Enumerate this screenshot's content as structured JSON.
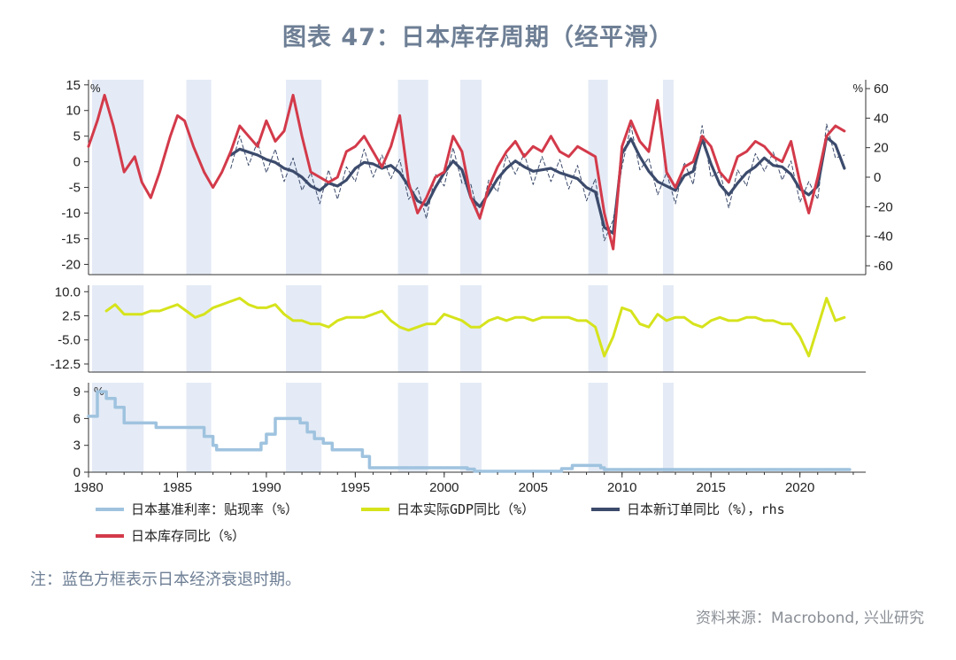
{
  "title": "图表 47：日本库存周期（经平滑）",
  "note": "注：蓝色方框表示日本经济衰退时期。",
  "source": "资料来源：Macrobond, 兴业研究",
  "legend": [
    {
      "label": "日本基准利率：贴现率（%）",
      "color": "#9fc3df"
    },
    {
      "label": "日本实际GDP同比（%）",
      "color": "#d6e31c"
    },
    {
      "label": "日本新订单同比（%），rhs",
      "color": "#3c4b6c"
    },
    {
      "label": "日本库存同比（%）",
      "color": "#d33a4a"
    }
  ],
  "colors": {
    "inventory": "#d33a4a",
    "orders": "#3c4b6c",
    "gdp": "#d6e31c",
    "rate": "#9fc3df",
    "recession": "#e4ebf6",
    "axis": "#333333"
  },
  "chart_data": [
    {
      "type": "line",
      "panel": "top",
      "x_ticks": [
        "1980",
        "1985",
        "1990",
        "1995",
        "2000",
        "2005",
        "2010",
        "2015",
        "2020"
      ],
      "left_axis": {
        "unit": "%",
        "ylim": [
          -22,
          16
        ],
        "ticks": [
          15,
          10,
          5,
          0,
          -5,
          -10,
          -15,
          -20
        ]
      },
      "right_axis": {
        "unit": "%",
        "ylim": [
          -66,
          66
        ],
        "ticks": [
          60,
          40,
          20,
          0,
          -20,
          -40,
          -60
        ]
      },
      "recessions": [
        [
          1980.2,
          1983.1
        ],
        [
          1985.5,
          1986.9
        ],
        [
          1991.1,
          1993.1
        ],
        [
          1997.4,
          1999.1
        ],
        [
          2000.9,
          2002.1
        ],
        [
          2008.1,
          2009.2
        ],
        [
          2012.3,
          2012.9
        ]
      ],
      "series": [
        {
          "name": "日本库存同比（%）",
          "axis": "left",
          "x": [
            1980,
            1980.5,
            1980.9,
            1981.4,
            1982.0,
            1982.6,
            1983.0,
            1983.5,
            1984.0,
            1984.6,
            1985.0,
            1985.4,
            1985.9,
            1986.5,
            1987.0,
            1987.5,
            1988.0,
            1988.5,
            1989.0,
            1989.5,
            1990.0,
            1990.5,
            1991.0,
            1991.5,
            1992.0,
            1992.5,
            1993.0,
            1993.5,
            1994.0,
            1994.5,
            1995.0,
            1995.5,
            1996.0,
            1996.5,
            1997.0,
            1997.5,
            1998.0,
            1998.5,
            1999.0,
            1999.5,
            2000.0,
            2000.5,
            2001.0,
            2001.5,
            2002.0,
            2002.5,
            2003.0,
            2003.5,
            2004.0,
            2004.5,
            2005.0,
            2005.5,
            2006.0,
            2006.5,
            2007.0,
            2007.5,
            2008.0,
            2008.5,
            2009.0,
            2009.5,
            2010.0,
            2010.5,
            2011.0,
            2011.5,
            2012.0,
            2012.5,
            2013.0,
            2013.5,
            2014.0,
            2014.5,
            2015.0,
            2015.5,
            2016.0,
            2016.5,
            2017.0,
            2017.5,
            2018.0,
            2018.5,
            2019.0,
            2019.5,
            2020.0,
            2020.5,
            2021.0,
            2021.5,
            2022.0,
            2022.5
          ],
          "values": [
            3,
            8,
            13,
            7,
            -2,
            1,
            -4,
            -7,
            -2,
            5,
            9,
            8,
            3,
            -2,
            -5,
            -2,
            2,
            7,
            5,
            3,
            8,
            4,
            6,
            13,
            5,
            -2,
            -3,
            -4,
            -3,
            2,
            3,
            5,
            2,
            -1,
            3,
            9,
            -4,
            -10,
            -7,
            -3,
            -2,
            5,
            2,
            -7,
            -11,
            -5,
            -1,
            2,
            4,
            1,
            3,
            2,
            5,
            2,
            1,
            3,
            2,
            1,
            -10,
            -17,
            3,
            8,
            4,
            2,
            12,
            -2,
            -5,
            -1,
            0,
            5,
            3,
            -2,
            -4,
            1,
            2,
            4,
            3,
            1,
            0,
            4,
            -4,
            -10,
            -3,
            5,
            7,
            6
          ]
        },
        {
          "name": "日本新订单同比（%），rhs",
          "axis": "right",
          "x": [
            1988.0,
            1988.5,
            1989.0,
            1989.5,
            1990.0,
            1990.5,
            1991.0,
            1991.5,
            1992.0,
            1992.5,
            1993.0,
            1993.5,
            1994.0,
            1994.5,
            1995.0,
            1995.5,
            1996.0,
            1996.5,
            1997.0,
            1997.5,
            1998.0,
            1998.5,
            1999.0,
            1999.5,
            2000.0,
            2000.5,
            2001.0,
            2001.5,
            2002.0,
            2002.5,
            2003.0,
            2003.5,
            2004.0,
            2004.5,
            2005.0,
            2005.5,
            2006.0,
            2006.5,
            2007.0,
            2007.5,
            2008.0,
            2008.5,
            2009.0,
            2009.5,
            2010.0,
            2010.5,
            2011.0,
            2011.5,
            2012.0,
            2012.5,
            2013.0,
            2013.5,
            2014.0,
            2014.5,
            2015.0,
            2015.5,
            2016.0,
            2016.5,
            2017.0,
            2017.5,
            2018.0,
            2018.5,
            2019.0,
            2019.5,
            2020.0,
            2020.5,
            2021.0,
            2021.5,
            2022.0,
            2022.5
          ],
          "values": [
            15,
            19,
            17,
            15,
            12,
            10,
            6,
            4,
            0,
            -6,
            -9,
            -4,
            -6,
            -2,
            6,
            10,
            9,
            6,
            8,
            3,
            -6,
            -16,
            -19,
            -7,
            3,
            11,
            5,
            -14,
            -20,
            -11,
            -1,
            6,
            11,
            7,
            4,
            5,
            6,
            3,
            1,
            -1,
            -7,
            -10,
            -34,
            -38,
            16,
            26,
            14,
            4,
            -3,
            -6,
            -9,
            1,
            4,
            26,
            9,
            -5,
            -12,
            -4,
            3,
            7,
            13,
            8,
            7,
            2,
            -8,
            -12,
            -6,
            27,
            22,
            6
          ]
        }
      ]
    },
    {
      "type": "line",
      "panel": "middle",
      "ylim": [
        -15,
        12
      ],
      "ticks": [
        10.0,
        2.5,
        -5.0,
        -12.5
      ],
      "series": [
        {
          "name": "日本实际GDP同比（%）",
          "x": [
            1981.0,
            1981.5,
            1982.0,
            1982.5,
            1983.0,
            1983.5,
            1984.0,
            1984.5,
            1985.0,
            1985.5,
            1986.0,
            1986.5,
            1987.0,
            1987.5,
            1988.0,
            1988.5,
            1989.0,
            1989.5,
            1990.0,
            1990.5,
            1991.0,
            1991.5,
            1992.0,
            1992.5,
            1993.0,
            1993.5,
            1994.0,
            1994.5,
            1995.0,
            1995.5,
            1996.0,
            1996.5,
            1997.0,
            1997.5,
            1998.0,
            1998.5,
            1999.0,
            1999.5,
            2000.0,
            2000.5,
            2001.0,
            2001.5,
            2002.0,
            2002.5,
            2003.0,
            2003.5,
            2004.0,
            2004.5,
            2005.0,
            2005.5,
            2006.0,
            2006.5,
            2007.0,
            2007.5,
            2008.0,
            2008.5,
            2009.0,
            2009.5,
            2010.0,
            2010.5,
            2011.0,
            2011.5,
            2012.0,
            2012.5,
            2013.0,
            2013.5,
            2014.0,
            2014.5,
            2015.0,
            2015.5,
            2016.0,
            2016.5,
            2017.0,
            2017.5,
            2018.0,
            2018.5,
            2019.0,
            2019.5,
            2020.0,
            2020.5,
            2021.0,
            2021.5,
            2022.0,
            2022.5
          ],
          "values": [
            4,
            6,
            3,
            3,
            3,
            4,
            4,
            5,
            6,
            4,
            2,
            3,
            5,
            6,
            7,
            8,
            6,
            5,
            5,
            6,
            3,
            1,
            1,
            0,
            0,
            -1,
            1,
            2,
            2,
            2,
            3,
            4,
            1,
            -1,
            -2,
            -1,
            0,
            0,
            3,
            2,
            1,
            -1,
            -1,
            1,
            2,
            1,
            2,
            2,
            1,
            2,
            2,
            2,
            2,
            1,
            1,
            -1,
            -10,
            -4,
            5,
            4,
            0,
            -1,
            3,
            1,
            2,
            2,
            0,
            -1,
            1,
            2,
            1,
            1,
            2,
            2,
            1,
            1,
            0,
            0,
            -4,
            -10,
            -1,
            8,
            1,
            2
          ]
        }
      ]
    },
    {
      "type": "line",
      "panel": "bottom",
      "unit": "%",
      "ylim": [
        0,
        10
      ],
      "ticks": [
        9,
        6,
        3,
        0
      ],
      "series": [
        {
          "name": "日本基准利率：贴现率（%）",
          "step": true,
          "x": [
            1980.0,
            1980.5,
            1981.0,
            1981.5,
            1982.0,
            1983.0,
            1983.8,
            1986.0,
            1986.5,
            1987.0,
            1987.2,
            1989.4,
            1989.7,
            1990.0,
            1990.5,
            1991.6,
            1991.9,
            1992.3,
            1992.7,
            1993.2,
            1993.7,
            1995.4,
            1995.8,
            2001.1,
            2001.3,
            2001.7,
            2006.6,
            2007.2,
            2008.8,
            2009.0,
            2022.8
          ],
          "values": [
            6.25,
            9.0,
            8.25,
            7.25,
            5.5,
            5.5,
            5.0,
            5.0,
            4.0,
            3.0,
            2.5,
            2.5,
            3.25,
            4.25,
            6.0,
            6.0,
            5.5,
            4.5,
            3.75,
            3.25,
            2.5,
            1.75,
            0.5,
            0.5,
            0.35,
            0.1,
            0.4,
            0.75,
            0.5,
            0.3,
            0.3
          ]
        }
      ]
    }
  ]
}
